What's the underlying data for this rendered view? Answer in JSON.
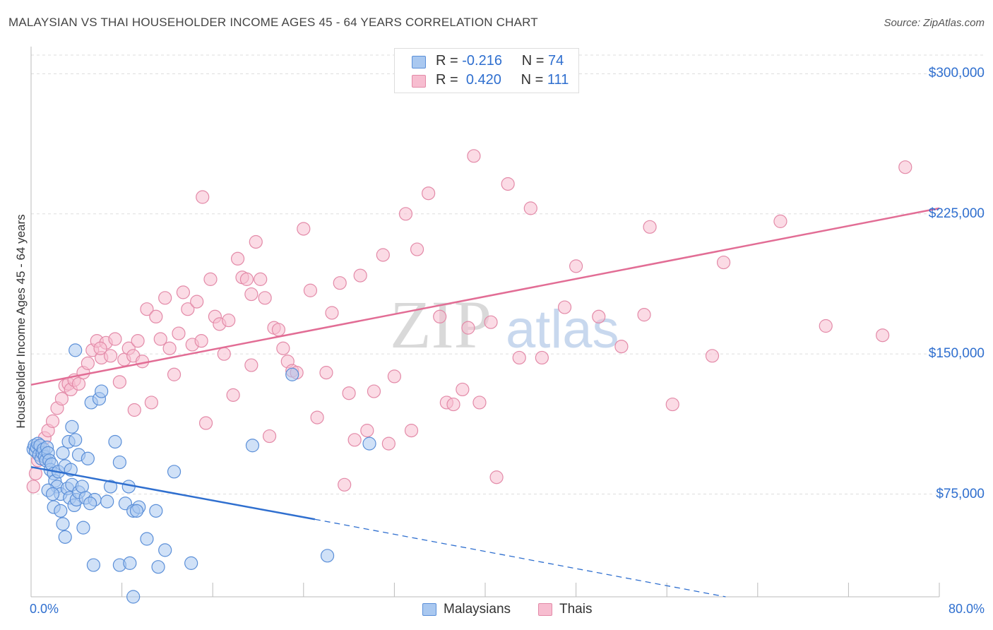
{
  "header": {
    "title": "MALAYSIAN VS THAI HOUSEHOLDER INCOME AGES 45 - 64 YEARS CORRELATION CHART",
    "source": "Source: ZipAtlas.com"
  },
  "colors": {
    "malaysians_fill": "#a9c8f0",
    "malaysians_stroke": "#5b8fd8",
    "malaysians_line": "#2f6fcf",
    "thais_fill": "#f7bdd0",
    "thais_stroke": "#e38aa8",
    "thais_line": "#e26d95",
    "axis_text": "#2f6fcf",
    "grid": "#dddddd"
  },
  "legend": {
    "rows": [
      {
        "r_label": "R =",
        "r_value": "-0.216",
        "n_label": "N =",
        "n_value": "74"
      },
      {
        "r_label": "R =",
        "r_value": "0.420",
        "n_label": "N =",
        "n_value": "111"
      }
    ]
  },
  "watermark": {
    "zip": "ZIP",
    "atlas": "atlas"
  },
  "chart_data": {
    "type": "scatter",
    "title": "MALAYSIAN VS THAI HOUSEHOLDER INCOME AGES 45 - 64 YEARS CORRELATION CHART",
    "ylabel": "Householder Income Ages 45 - 64 years",
    "xlabel": "",
    "xlim": [
      0,
      80
    ],
    "ylim": [
      20000,
      310000
    ],
    "x_tick_labels": [
      "0.0%",
      "80.0%"
    ],
    "y_ticks": [
      75000,
      150000,
      225000,
      300000
    ],
    "y_tick_labels": [
      "$75,000",
      "$150,000",
      "$225,000",
      "$300,000"
    ],
    "grid": true,
    "legend_position": "top-center",
    "series": [
      {
        "name": "Malaysians",
        "r": -0.216,
        "n": 74,
        "trend": {
          "x0": 0,
          "y0": 89500,
          "x1": 25,
          "y1": 61500,
          "dashed_to_x": 76,
          "dashed_to_y": 3000
        },
        "points": [
          [
            0.2,
            99000
          ],
          [
            0.3,
            101000
          ],
          [
            0.4,
            98000
          ],
          [
            0.5,
            100000
          ],
          [
            0.6,
            102000
          ],
          [
            0.7,
            96000
          ],
          [
            0.8,
            101000
          ],
          [
            0.9,
            94000
          ],
          [
            1.0,
            97000
          ],
          [
            1.1,
            99000
          ],
          [
            1.2,
            95000
          ],
          [
            1.3,
            93000
          ],
          [
            1.4,
            100000
          ],
          [
            1.5,
            97000
          ],
          [
            1.6,
            93000
          ],
          [
            1.7,
            88000
          ],
          [
            1.8,
            91000
          ],
          [
            2.0,
            86000
          ],
          [
            2.1,
            82000
          ],
          [
            2.3,
            79000
          ],
          [
            2.4,
            87000
          ],
          [
            2.6,
            75000
          ],
          [
            2.8,
            97000
          ],
          [
            3.0,
            90000
          ],
          [
            3.2,
            78000
          ],
          [
            3.4,
            73000
          ],
          [
            3.6,
            80000
          ],
          [
            3.8,
            69000
          ],
          [
            4.0,
            72000
          ],
          [
            4.2,
            76000
          ],
          [
            1.5,
            77000
          ],
          [
            2.0,
            68000
          ],
          [
            1.9,
            75000
          ],
          [
            2.6,
            66000
          ],
          [
            2.8,
            59000
          ],
          [
            3.3,
            103000
          ],
          [
            3.5,
            88000
          ],
          [
            3.6,
            111000
          ],
          [
            3.9,
            104000
          ],
          [
            4.2,
            96000
          ],
          [
            4.5,
            79000
          ],
          [
            4.8,
            73000
          ],
          [
            5.0,
            94000
          ],
          [
            5.3,
            124000
          ],
          [
            5.6,
            72000
          ],
          [
            6.0,
            126000
          ],
          [
            6.2,
            130000
          ],
          [
            6.7,
            71000
          ],
          [
            7.0,
            79000
          ],
          [
            7.4,
            103000
          ],
          [
            7.8,
            92000
          ],
          [
            8.3,
            70000
          ],
          [
            8.6,
            79000
          ],
          [
            9.0,
            66000
          ],
          [
            9.5,
            68000
          ],
          [
            10.2,
            51000
          ],
          [
            11.0,
            66000
          ],
          [
            11.8,
            45000
          ],
          [
            12.6,
            87000
          ],
          [
            4.6,
            57000
          ],
          [
            5.5,
            37000
          ],
          [
            7.8,
            37000
          ],
          [
            8.7,
            38000
          ],
          [
            3.9,
            152000
          ],
          [
            11.2,
            36000
          ],
          [
            14.1,
            38000
          ],
          [
            19.5,
            101000
          ],
          [
            23.0,
            139000
          ],
          [
            26.1,
            42000
          ],
          [
            29.8,
            102000
          ],
          [
            9.0,
            20000
          ],
          [
            9.3,
            66000
          ],
          [
            3.0,
            52000
          ],
          [
            5.2,
            70000
          ]
        ]
      },
      {
        "name": "Thais",
        "r": 0.42,
        "n": 111,
        "trend": {
          "x0": 0,
          "y0": 133500,
          "x1": 80,
          "y1": 228000
        },
        "points": [
          [
            0.2,
            79000
          ],
          [
            0.4,
            86000
          ],
          [
            0.6,
            93000
          ],
          [
            0.9,
            98000
          ],
          [
            1.2,
            105000
          ],
          [
            1.5,
            109000
          ],
          [
            1.9,
            114000
          ],
          [
            2.3,
            121000
          ],
          [
            2.7,
            126000
          ],
          [
            3.0,
            133000
          ],
          [
            3.3,
            134000
          ],
          [
            3.5,
            131000
          ],
          [
            3.8,
            136000
          ],
          [
            4.2,
            134000
          ],
          [
            4.6,
            140000
          ],
          [
            5.0,
            145000
          ],
          [
            5.4,
            152000
          ],
          [
            5.8,
            157000
          ],
          [
            6.2,
            148000
          ],
          [
            6.6,
            156000
          ],
          [
            7.0,
            149000
          ],
          [
            7.4,
            158000
          ],
          [
            7.8,
            135000
          ],
          [
            8.2,
            147000
          ],
          [
            8.6,
            153000
          ],
          [
            9.0,
            149000
          ],
          [
            9.4,
            157000
          ],
          [
            9.8,
            146000
          ],
          [
            10.2,
            174000
          ],
          [
            10.6,
            124000
          ],
          [
            11.0,
            170000
          ],
          [
            11.4,
            158000
          ],
          [
            11.8,
            180000
          ],
          [
            12.2,
            153000
          ],
          [
            12.6,
            139000
          ],
          [
            13.0,
            161000
          ],
          [
            13.4,
            183000
          ],
          [
            13.8,
            174000
          ],
          [
            14.2,
            155000
          ],
          [
            14.6,
            178000
          ],
          [
            15.0,
            157000
          ],
          [
            15.4,
            113000
          ],
          [
            15.8,
            190000
          ],
          [
            16.2,
            170000
          ],
          [
            16.6,
            166000
          ],
          [
            17.0,
            150000
          ],
          [
            17.4,
            168000
          ],
          [
            17.8,
            128000
          ],
          [
            18.2,
            201000
          ],
          [
            18.6,
            191000
          ],
          [
            19.0,
            190000
          ],
          [
            19.4,
            182000
          ],
          [
            19.8,
            210000
          ],
          [
            20.2,
            190000
          ],
          [
            20.6,
            180000
          ],
          [
            21.0,
            106000
          ],
          [
            21.4,
            164000
          ],
          [
            21.8,
            163000
          ],
          [
            22.2,
            153000
          ],
          [
            22.6,
            146000
          ],
          [
            23.0,
            141000
          ],
          [
            23.4,
            140000
          ],
          [
            24.0,
            217000
          ],
          [
            24.6,
            184000
          ],
          [
            25.2,
            116000
          ],
          [
            26.0,
            140000
          ],
          [
            26.5,
            172000
          ],
          [
            27.2,
            188000
          ],
          [
            28.0,
            129000
          ],
          [
            28.5,
            104000
          ],
          [
            29.0,
            192000
          ],
          [
            29.6,
            109000
          ],
          [
            30.2,
            130000
          ],
          [
            31.0,
            203000
          ],
          [
            31.5,
            102000
          ],
          [
            32.0,
            138000
          ],
          [
            33.0,
            225000
          ],
          [
            34.0,
            206000
          ],
          [
            35.0,
            236000
          ],
          [
            36.0,
            170000
          ],
          [
            36.6,
            124000
          ],
          [
            37.2,
            123000
          ],
          [
            38.0,
            131000
          ],
          [
            38.5,
            164000
          ],
          [
            39.0,
            256000
          ],
          [
            39.5,
            124000
          ],
          [
            40.5,
            167000
          ],
          [
            41.0,
            84000
          ],
          [
            42.0,
            241000
          ],
          [
            43.0,
            148000
          ],
          [
            44.0,
            228000
          ],
          [
            45.0,
            148000
          ],
          [
            47.0,
            175000
          ],
          [
            48.0,
            197000
          ],
          [
            50.0,
            170000
          ],
          [
            52.0,
            154000
          ],
          [
            54.0,
            171000
          ],
          [
            54.5,
            218000
          ],
          [
            56.5,
            123000
          ],
          [
            60.0,
            149000
          ],
          [
            61.0,
            199000
          ],
          [
            66.0,
            221000
          ],
          [
            70.0,
            165000
          ],
          [
            75.0,
            160000
          ],
          [
            77.0,
            250000
          ],
          [
            9.1,
            120000
          ],
          [
            15.1,
            234000
          ],
          [
            27.6,
            80000
          ],
          [
            33.5,
            109000
          ],
          [
            6.1,
            153000
          ],
          [
            19.4,
            144000
          ]
        ]
      }
    ]
  },
  "bottom_legend": {
    "items": [
      {
        "label": "Malaysians"
      },
      {
        "label": "Thais"
      }
    ]
  }
}
